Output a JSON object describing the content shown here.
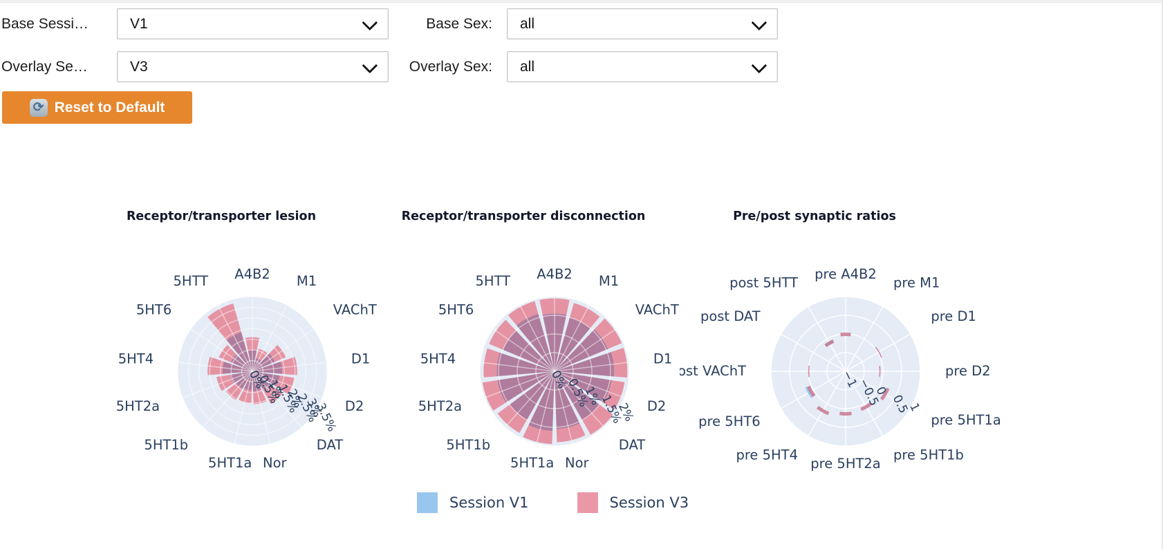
{
  "form": {
    "base_session": {
      "label": "Base Sessi…",
      "value": "V1"
    },
    "base_sex": {
      "label": "Base Sex:",
      "value": "all"
    },
    "overlay_session": {
      "label": "Overlay Se…",
      "value": "V3"
    },
    "overlay_sex": {
      "label": "Overlay Sex:",
      "value": "all"
    },
    "reset_button": {
      "icon": "⟳",
      "label": "Reset to Default"
    }
  },
  "colors": {
    "polar_bg": "#E5ECF6",
    "grid": "#FFFFFF",
    "axis_text": "#2a3f5f",
    "bar_pink": "#E593A3",
    "bar_overlap": "#AF7C9D",
    "bar_blue": "#A9CBE8",
    "marker_pink": "#C9788F",
    "marker_blue": "#9CC6EA",
    "button_bg": "#E6862D"
  },
  "legend": {
    "items": [
      {
        "label": "Session V1",
        "color": "#99C6EE"
      },
      {
        "label": "Session V3",
        "color": "#EA98A6"
      }
    ]
  },
  "chart_data": [
    {
      "type": "polar_bar",
      "title": "Receptor/transporter lesion",
      "categories": [
        "A4B2",
        "M1",
        "VAChT",
        "D1",
        "D2",
        "DAT",
        "Nor",
        "5HT1a",
        "5HT1b",
        "5HT2a",
        "5HT4",
        "5HT6",
        "5HTT"
      ],
      "series": [
        {
          "name": "Session V1",
          "values": [
            1.0,
            0.65,
            1.15,
            1.4,
            1.3,
            1.05,
            0.95,
            0.9,
            0.95,
            1.05,
            1.4,
            1.1,
            1.9
          ]
        },
        {
          "name": "Session V3",
          "values": [
            1.6,
            1.1,
            1.7,
            2.1,
            2.0,
            1.75,
            1.55,
            1.5,
            1.55,
            1.7,
            2.1,
            1.7,
            3.3
          ]
        }
      ],
      "r_ticks": [
        "0%",
        "0.5%",
        "1%",
        "1.5%",
        "2%",
        "2.5%",
        "3%",
        "3.5%"
      ],
      "r_range": [
        0,
        3.5
      ],
      "unit": "%",
      "grid": "on",
      "legend_position": "bottom-center"
    },
    {
      "type": "polar_bar",
      "title": "Receptor/transporter disconnection",
      "categories": [
        "A4B2",
        "M1",
        "VAChT",
        "D1",
        "D2",
        "DAT",
        "Nor",
        "5HT1a",
        "5HT1b",
        "5HT2a",
        "5HT4",
        "5HT6",
        "5HTT"
      ],
      "series": [
        {
          "name": "Session V1",
          "values": [
            1.55,
            1.5,
            1.55,
            1.6,
            1.55,
            1.5,
            1.55,
            1.6,
            1.5,
            1.55,
            1.55,
            1.5,
            1.6
          ]
        },
        {
          "name": "Session V3",
          "values": [
            1.95,
            1.9,
            1.95,
            1.95,
            1.9,
            1.95,
            1.9,
            1.95,
            1.9,
            1.95,
            1.9,
            1.9,
            1.95
          ]
        }
      ],
      "r_ticks": [
        "0%",
        "0.5%",
        "1%",
        "1.5%",
        "2%"
      ],
      "r_range": [
        0,
        2
      ],
      "unit": "%",
      "grid": "on",
      "legend_position": "bottom-center"
    },
    {
      "type": "polar_scatter",
      "title": "Pre/post synaptic ratios",
      "categories": [
        "pre A4B2",
        "pre M1",
        "pre D1",
        "pre D2",
        "pre 5HT1a",
        "pre 5HT1b",
        "pre 5HT2a",
        "pre 5HT4",
        "pre 5HT6",
        "post VAChT",
        "post DAT",
        "post 5HTT"
      ],
      "series": [
        {
          "name": "Session V1",
          "values": [
            null,
            null,
            null,
            null,
            null,
            null,
            null,
            null,
            0.12,
            null,
            null,
            -0.13
          ]
        },
        {
          "name": "Session V3",
          "values": [
            -0.01,
            null,
            0.03,
            -0.08,
            0.22,
            0.1,
            0.14,
            0.22,
            0.07,
            -0.01,
            null,
            -0.13
          ]
        }
      ],
      "thin_indices": [
        2,
        3,
        9
      ],
      "r_ticks": [
        "−1",
        "−0.5",
        "0",
        "0.5",
        "1"
      ],
      "r_range": [
        -1,
        1
      ],
      "grid": "on",
      "legend_position": "bottom-center"
    }
  ]
}
